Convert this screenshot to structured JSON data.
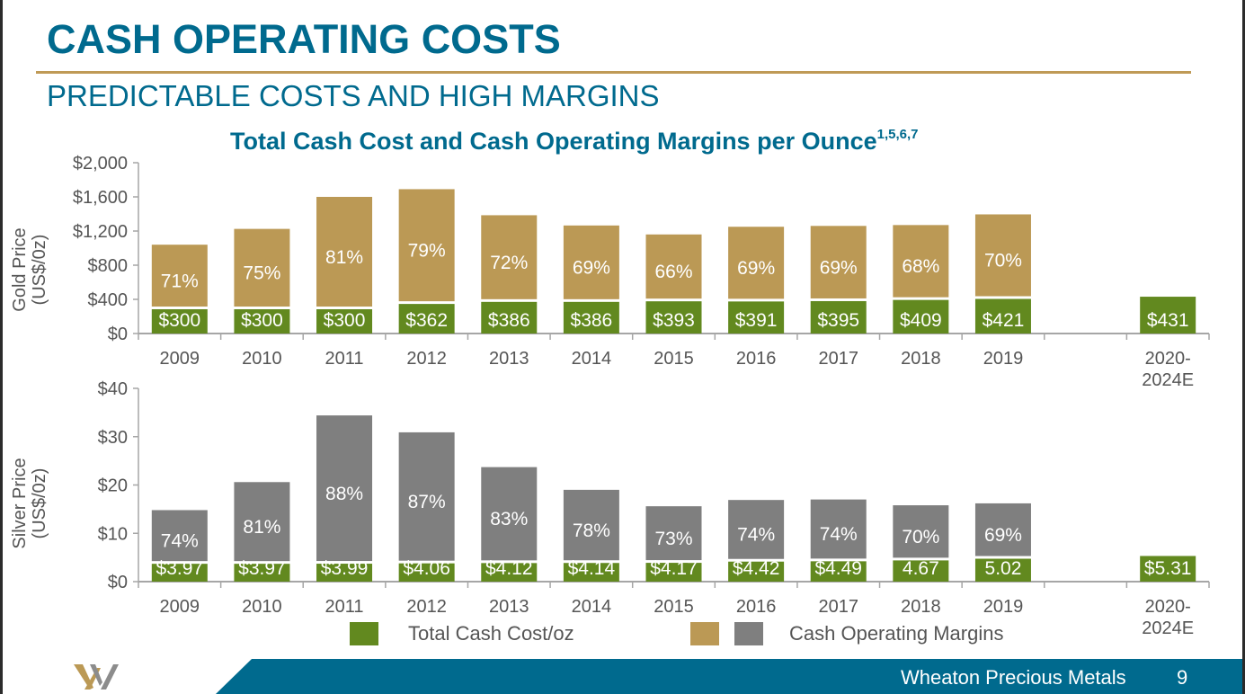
{
  "slide": {
    "title": "CASH OPERATING COSTS",
    "subtitle": "PREDICTABLE COSTS AND HIGH MARGINS",
    "chart_title": "Total Cash Cost and Cash Operating Margins per Ounce",
    "chart_title_footnotes": "1,5,6,7",
    "footer_company": "Wheaton Precious Metals",
    "page_number": "9"
  },
  "legend": {
    "cost_label": "Total Cash Cost/oz",
    "margin_label": "Cash Operating Margins"
  },
  "colors": {
    "brand_blue": "#006a8e",
    "gold_rule": "#bf9a56",
    "cost_green": "#62891f",
    "gold_margin": "#bb9955",
    "silver_margin": "#7f7f7f",
    "axis": "#a6a6a6",
    "text_gray": "#555555"
  },
  "chart_data": [
    {
      "type": "bar",
      "stacked": true,
      "title": "Total Cash Cost and Cash Operating Margins per Ounce",
      "ylabel": "Gold Price (US$/0z)",
      "ylim": [
        0,
        2000
      ],
      "yticks": [
        0,
        400,
        800,
        1200,
        1600,
        2000
      ],
      "ytick_labels": [
        "$0",
        "$400",
        "$800",
        "$1,200",
        "$1,600",
        "$2,000"
      ],
      "categories": [
        "2009",
        "2010",
        "2011",
        "2012",
        "2013",
        "2014",
        "2015",
        "2016",
        "2017",
        "2018",
        "2019",
        "",
        "2020-2024E"
      ],
      "category_labels": [
        [
          "2009"
        ],
        [
          "2010"
        ],
        [
          "2011"
        ],
        [
          "2012"
        ],
        [
          "2013"
        ],
        [
          "2014"
        ],
        [
          "2015"
        ],
        [
          "2016"
        ],
        [
          "2017"
        ],
        [
          "2018"
        ],
        [
          "2019"
        ],
        [
          ""
        ],
        [
          "2020-",
          "2024E"
        ]
      ],
      "series": [
        {
          "name": "Total Cash Cost/oz",
          "values": [
            300,
            300,
            300,
            362,
            386,
            386,
            393,
            391,
            395,
            409,
            421,
            null,
            431
          ],
          "labels": [
            "$300",
            "$300",
            "$300",
            "$362",
            "$386",
            "$386",
            "$393",
            "$391",
            "$395",
            "$409",
            "$421",
            "",
            "$431"
          ]
        },
        {
          "name": "Gold Price (total)",
          "values": [
            1040,
            1225,
            1600,
            1690,
            1385,
            1265,
            1160,
            1250,
            1260,
            1270,
            1395,
            null,
            null
          ]
        },
        {
          "name": "Cash Operating Margin %",
          "values": [
            71,
            75,
            81,
            79,
            72,
            69,
            66,
            69,
            69,
            68,
            70,
            null,
            null
          ],
          "labels": [
            "71%",
            "75%",
            "81%",
            "79%",
            "72%",
            "69%",
            "66%",
            "69%",
            "69%",
            "68%",
            "70%",
            "",
            ""
          ]
        }
      ],
      "grid": false,
      "legend": "bottom"
    },
    {
      "type": "bar",
      "stacked": true,
      "ylabel": "Silver Price (US$/0z)",
      "ylim": [
        0,
        40
      ],
      "yticks": [
        0,
        10,
        20,
        30,
        40
      ],
      "ytick_labels": [
        "$0",
        "$10",
        "$20",
        "$30",
        "$40"
      ],
      "categories": [
        "2009",
        "2010",
        "2011",
        "2012",
        "2013",
        "2014",
        "2015",
        "2016",
        "2017",
        "2018",
        "2019",
        "",
        "2020-2024E"
      ],
      "category_labels": [
        [
          "2009"
        ],
        [
          "2010"
        ],
        [
          "2011"
        ],
        [
          "2012"
        ],
        [
          "2013"
        ],
        [
          "2014"
        ],
        [
          "2015"
        ],
        [
          "2016"
        ],
        [
          "2017"
        ],
        [
          "2018"
        ],
        [
          "2019"
        ],
        [
          ""
        ],
        [
          "2020-",
          "2024E"
        ]
      ],
      "series": [
        {
          "name": "Total Cash Cost/oz",
          "values": [
            3.97,
            3.97,
            3.99,
            4.06,
            4.12,
            4.14,
            4.17,
            4.42,
            4.49,
            4.67,
            5.02,
            null,
            5.31
          ],
          "labels": [
            "$3.97",
            "$3.97",
            "$3.99",
            "$4.06",
            "$4.12",
            "$4.14",
            "$4.17",
            "$4.42",
            "$4.49",
            "4.67",
            "5.02",
            "",
            "$5.31"
          ]
        },
        {
          "name": "Silver Price (total)",
          "values": [
            14.8,
            20.6,
            34.4,
            30.9,
            23.7,
            19.0,
            15.6,
            16.9,
            17.0,
            15.8,
            16.2,
            null,
            null
          ]
        },
        {
          "name": "Cash Operating Margin %",
          "values": [
            74,
            81,
            88,
            87,
            83,
            78,
            73,
            74,
            74,
            70,
            69,
            null,
            null
          ],
          "labels": [
            "74%",
            "81%",
            "88%",
            "87%",
            "83%",
            "78%",
            "73%",
            "74%",
            "74%",
            "70%",
            "69%",
            "",
            ""
          ]
        }
      ],
      "grid": false,
      "legend": "bottom"
    }
  ]
}
